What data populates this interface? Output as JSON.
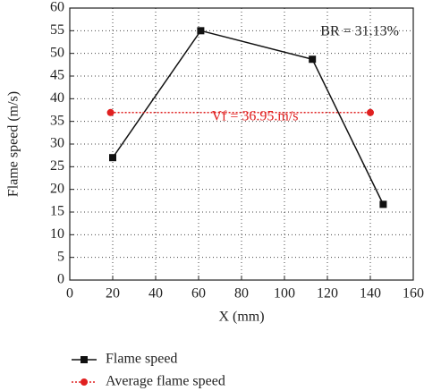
{
  "chart_data": {
    "type": "line",
    "x_label": "X (mm)",
    "y_label": "Flame speed (m/s)",
    "annotations": [
      "BR = 31.13%",
      "Vf = 36.95.m/s"
    ],
    "xlim": [
      0,
      160
    ],
    "xticks": [
      0,
      20,
      40,
      60,
      80,
      100,
      120,
      140,
      160
    ],
    "ylim": [
      0,
      60
    ],
    "yticks": [
      0,
      5,
      10,
      15,
      20,
      25,
      30,
      35,
      40,
      45,
      50,
      55,
      60
    ],
    "grid": true,
    "series": [
      {
        "name": "Flame speed",
        "color": "#111111",
        "marker": "square",
        "dash": false,
        "x": [
          20,
          61,
          113,
          146
        ],
        "values": [
          27,
          55,
          48.7,
          16.7
        ]
      },
      {
        "name": "Average flame speed",
        "color": "#e02020",
        "marker": "circle",
        "dash": true,
        "x": [
          19,
          140
        ],
        "values": [
          36.95,
          36.95
        ]
      }
    ]
  }
}
